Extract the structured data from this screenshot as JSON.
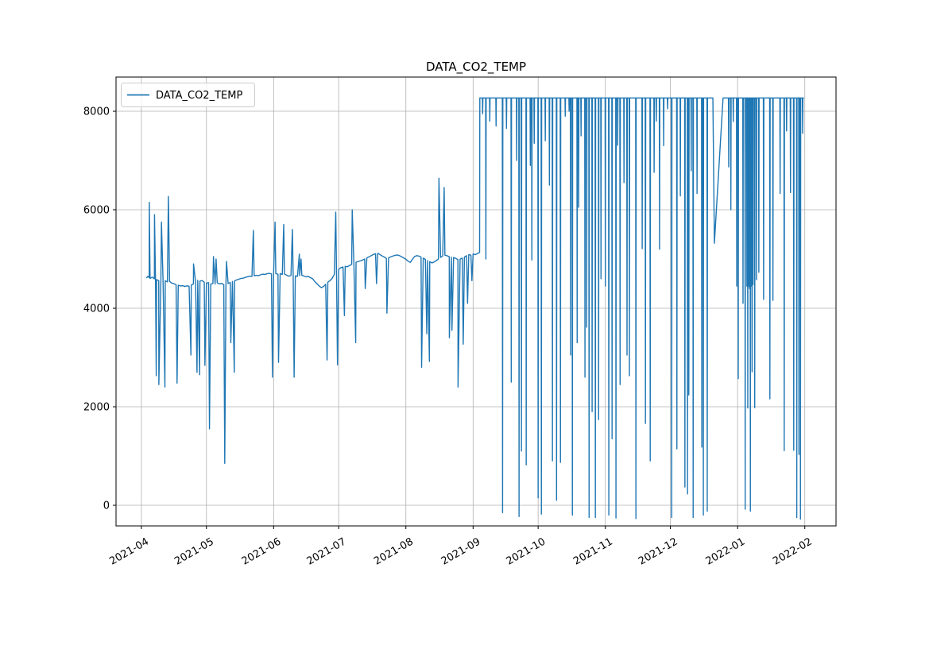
{
  "title": "DATA_CO2_TEMP",
  "legend": {
    "label": "DATA_CO2_TEMP",
    "line_color": "#1f77b4"
  },
  "chart_data": {
    "type": "line",
    "title": "DATA_CO2_TEMP",
    "series_name": "DATA_CO2_TEMP",
    "line_color": "#1f77b4",
    "grid": true,
    "grid_color": "#b0b0b0",
    "axis_color": "#000000",
    "legend_position": "upper left",
    "x_unit": "days since 2021-04-01",
    "xlim": [
      -11.7,
      320.4
    ],
    "ylim": [
      -419,
      8694
    ],
    "x_ticks": [
      {
        "day": 0,
        "label": "2021-04"
      },
      {
        "day": 30,
        "label": "2021-05"
      },
      {
        "day": 61,
        "label": "2021-06"
      },
      {
        "day": 91,
        "label": "2021-07"
      },
      {
        "day": 122,
        "label": "2021-08"
      },
      {
        "day": 153,
        "label": "2021-09"
      },
      {
        "day": 183,
        "label": "2021-10"
      },
      {
        "day": 214,
        "label": "2021-11"
      },
      {
        "day": 244,
        "label": "2021-12"
      },
      {
        "day": 275,
        "label": "2022-01"
      },
      {
        "day": 306,
        "label": "2022-02"
      }
    ],
    "y_ticks": [
      {
        "value": 0,
        "label": "0"
      },
      {
        "value": 2000,
        "label": "2000"
      },
      {
        "value": 4000,
        "label": "4000"
      },
      {
        "value": 6000,
        "label": "6000"
      },
      {
        "value": 8000,
        "label": "8000"
      }
    ],
    "baseline_points": [
      [
        2.3,
        4615
      ],
      [
        3,
        4648
      ],
      [
        3.6,
        4622
      ],
      [
        3.65,
        6150
      ],
      [
        4,
        4605
      ],
      [
        5,
        4632
      ],
      [
        6,
        4598
      ],
      [
        6.05,
        5900
      ],
      [
        6.5,
        4612
      ],
      [
        6.85,
        2630
      ],
      [
        7,
        4582
      ],
      [
        8,
        4560
      ],
      [
        8.05,
        2450
      ],
      [
        9,
        4571
      ],
      [
        9.25,
        5750
      ],
      [
        10,
        4548
      ],
      [
        10.85,
        2400
      ],
      [
        11,
        4558
      ],
      [
        12,
        4535
      ],
      [
        12.45,
        6270
      ],
      [
        13,
        4546
      ],
      [
        14,
        4512
      ],
      [
        15,
        4498
      ],
      [
        16,
        4478
      ],
      [
        16.45,
        2480
      ],
      [
        17,
        4469
      ],
      [
        18,
        4452
      ],
      [
        19,
        4460
      ],
      [
        20,
        4443
      ],
      [
        21,
        4455
      ],
      [
        22,
        4447
      ],
      [
        22.85,
        3050
      ],
      [
        23,
        4468
      ],
      [
        24,
        4495
      ],
      [
        24.05,
        4900
      ],
      [
        25,
        4538
      ],
      [
        25.65,
        2700
      ],
      [
        26,
        4568
      ],
      [
        26.85,
        2650
      ],
      [
        27,
        4551
      ],
      [
        28,
        4562
      ],
      [
        29,
        4528
      ],
      [
        29.3,
        2840
      ],
      [
        30,
        4512
      ],
      [
        31,
        4520
      ],
      [
        31.4,
        1550
      ],
      [
        32,
        4489
      ],
      [
        33,
        4505
      ],
      [
        33.25,
        5050
      ],
      [
        34,
        4492
      ],
      [
        34.45,
        5000
      ],
      [
        35,
        4517
      ],
      [
        36,
        4494
      ],
      [
        37,
        4506
      ],
      [
        38,
        4478
      ],
      [
        38.45,
        850
      ],
      [
        39,
        4488
      ],
      [
        39.25,
        4950
      ],
      [
        40,
        4502
      ],
      [
        41,
        4522
      ],
      [
        41.25,
        3300
      ],
      [
        42,
        4543
      ],
      [
        42.85,
        2700
      ],
      [
        43,
        4556
      ],
      [
        44,
        4577
      ],
      [
        45,
        4591
      ],
      [
        46,
        4606
      ],
      [
        47,
        4611
      ],
      [
        48,
        4628
      ],
      [
        49,
        4641
      ],
      [
        50,
        4653
      ],
      [
        51,
        4647
      ],
      [
        51.65,
        5580
      ],
      [
        52,
        4659
      ],
      [
        53,
        4668
      ],
      [
        54,
        4661
      ],
      [
        55,
        4680
      ],
      [
        56,
        4692
      ],
      [
        57,
        4687
      ],
      [
        58,
        4701
      ],
      [
        59,
        4709
      ],
      [
        60,
        4698
      ],
      [
        60.45,
        2600
      ],
      [
        61,
        4713
      ],
      [
        61.65,
        5750
      ],
      [
        62,
        4702
      ],
      [
        63,
        4691
      ],
      [
        63.25,
        2900
      ],
      [
        64,
        4704
      ],
      [
        65,
        4687
      ],
      [
        65.65,
        5700
      ],
      [
        66,
        4695
      ],
      [
        67,
        4672
      ],
      [
        68,
        4651
      ],
      [
        69,
        4666
      ],
      [
        69.65,
        5600
      ],
      [
        70,
        4678
      ],
      [
        70.45,
        2600
      ],
      [
        71,
        4656
      ],
      [
        72,
        4648
      ],
      [
        72.85,
        5100
      ],
      [
        73,
        4663
      ],
      [
        73.65,
        5000
      ],
      [
        74,
        4671
      ],
      [
        75,
        4654
      ],
      [
        76,
        4637
      ],
      [
        77,
        4648
      ],
      [
        78,
        4622
      ],
      [
        79,
        4598
      ],
      [
        80,
        4541
      ],
      [
        81,
        4498
      ],
      [
        82,
        4452
      ],
      [
        83,
        4418
      ],
      [
        84,
        4441
      ],
      [
        85,
        4487
      ],
      [
        85.65,
        2950
      ],
      [
        86,
        4529
      ],
      [
        87,
        4561
      ],
      [
        88,
        4609
      ],
      [
        89,
        4689
      ],
      [
        89.65,
        5950
      ],
      [
        90,
        4741
      ],
      [
        90.45,
        2850
      ],
      [
        91,
        4789
      ],
      [
        92,
        4824
      ],
      [
        93,
        4838
      ],
      [
        93.65,
        3850
      ],
      [
        94,
        4851
      ],
      [
        95,
        4843
      ],
      [
        96,
        4867
      ],
      [
        97,
        4892
      ],
      [
        97.25,
        6000
      ],
      [
        98,
        4921
      ],
      [
        98.85,
        3300
      ],
      [
        99,
        4936
      ],
      [
        100,
        4948
      ],
      [
        101,
        4962
      ],
      [
        102,
        4979
      ],
      [
        103,
        5001
      ],
      [
        103.25,
        4400
      ],
      [
        104,
        5022
      ],
      [
        105,
        5044
      ],
      [
        106,
        5068
      ],
      [
        107,
        5091
      ],
      [
        108,
        5108
      ],
      [
        108.45,
        4500
      ],
      [
        109,
        5116
      ],
      [
        110,
        5092
      ],
      [
        111,
        5063
      ],
      [
        112,
        5041
      ],
      [
        113,
        5012
      ],
      [
        113.25,
        3900
      ],
      [
        114,
        5024
      ],
      [
        115,
        5043
      ],
      [
        116,
        5061
      ],
      [
        117,
        5074
      ],
      [
        118,
        5082
      ],
      [
        119,
        5069
      ],
      [
        120,
        5047
      ],
      [
        121,
        5021
      ],
      [
        122,
        4996
      ],
      [
        123,
        4957
      ],
      [
        124,
        4931
      ],
      [
        125,
        4992
      ],
      [
        126,
        5051
      ],
      [
        127,
        5068
      ],
      [
        128,
        5059
      ],
      [
        129,
        5041
      ],
      [
        129.25,
        2800
      ],
      [
        130,
        5018
      ],
      [
        131,
        4992
      ],
      [
        131.65,
        3480
      ],
      [
        132,
        4968
      ],
      [
        132.85,
        2920
      ],
      [
        133,
        4947
      ],
      [
        134,
        4921
      ],
      [
        135,
        4939
      ],
      [
        136,
        4968
      ],
      [
        137,
        5002
      ],
      [
        137.25,
        6640
      ],
      [
        138,
        5031
      ],
      [
        139,
        5064
      ],
      [
        139.65,
        6450
      ],
      [
        140,
        5078
      ],
      [
        141,
        5066
      ],
      [
        142,
        5049
      ],
      [
        142.05,
        3400
      ],
      [
        143,
        5037
      ],
      [
        143.25,
        3550
      ],
      [
        144,
        5031
      ],
      [
        145,
        5012
      ],
      [
        146,
        4988
      ],
      [
        146.05,
        2400
      ],
      [
        147,
        4999
      ],
      [
        148,
        5018
      ],
      [
        148.45,
        3270
      ],
      [
        149,
        5041
      ],
      [
        150,
        5068
      ],
      [
        150.45,
        4100
      ],
      [
        151,
        5089
      ],
      [
        152,
        5079
      ],
      [
        152.45,
        4560
      ],
      [
        153,
        5102
      ],
      [
        154,
        5088
      ],
      [
        155,
        5112
      ],
      [
        155.6,
        5124
      ],
      [
        156,
        5131
      ]
    ],
    "saturation": {
      "level": 8270,
      "start_day": 156.1,
      "end_day": 305.6,
      "dips": [
        [
          157.4,
          7950
        ],
        [
          158.9,
          5000
        ],
        [
          160.7,
          7800
        ],
        [
          163.6,
          7700
        ],
        [
          166.6,
          -150
        ],
        [
          168.4,
          7650
        ],
        [
          170.6,
          2500
        ],
        [
          173.1,
          7000
        ],
        [
          174.2,
          -230
        ],
        [
          175.3,
          1100
        ],
        [
          177.5,
          820
        ],
        [
          179.4,
          6900
        ],
        [
          180.1,
          4980
        ],
        [
          181.2,
          7350
        ],
        [
          183.0,
          150
        ],
        [
          184.5,
          -180
        ],
        [
          186.3,
          7400
        ],
        [
          188.2,
          6500
        ],
        [
          189.6,
          900
        ],
        [
          191.5,
          100
        ],
        [
          193.3,
          870
        ],
        [
          195.5,
          7900
        ],
        [
          197.3,
          8000
        ],
        [
          198.0,
          3050
        ],
        [
          198.8,
          -200
        ],
        [
          201.0,
          3300
        ],
        [
          201.7,
          6050
        ],
        [
          202.8,
          7500
        ],
        [
          204.6,
          2600
        ],
        [
          205.4,
          3615
        ],
        [
          206.5,
          -250
        ],
        [
          207.9,
          1900
        ],
        [
          209.4,
          -250
        ],
        [
          210.9,
          1740
        ],
        [
          212.0,
          4600
        ],
        [
          214.0,
          4450
        ],
        [
          215.6,
          -200
        ],
        [
          217.1,
          1350
        ],
        [
          218.9,
          -260
        ],
        [
          219.7,
          7310
        ],
        [
          220.8,
          2450
        ],
        [
          222.6,
          6550
        ],
        [
          224.0,
          3050
        ],
        [
          225.1,
          2630
        ],
        [
          228.1,
          -270
        ],
        [
          231.0,
          5210
        ],
        [
          232.5,
          1660
        ],
        [
          234.7,
          900
        ],
        [
          236.5,
          6760
        ],
        [
          237.5,
          7800
        ],
        [
          239.0,
          5200
        ],
        [
          240.9,
          7300
        ],
        [
          242.7,
          8050
        ],
        [
          244.6,
          -250
        ],
        [
          247.0,
          1145
        ],
        [
          248.6,
          6280
        ],
        [
          250.7,
          370
        ],
        [
          251.9,
          230
        ],
        [
          252.5,
          2240
        ],
        [
          253.6,
          6790
        ],
        [
          254.5,
          -250
        ],
        [
          256.3,
          6330
        ],
        [
          258.5,
          1180
        ],
        [
          259.2,
          -200
        ],
        [
          261.0,
          -120
        ],
        [
          264.3,
          5320,
          268.3,
          263.6
        ],
        [
          270.9,
          6870
        ],
        [
          271.9,
          6000
        ],
        [
          273.0,
          7790
        ],
        [
          274.6,
          4450
        ],
        [
          275.3,
          2570
        ],
        [
          277.5,
          4100
        ],
        [
          278.5,
          -80
        ],
        [
          279.3,
          4450
        ],
        [
          279.7,
          1975
        ],
        [
          280.1,
          4450
        ],
        [
          280.5,
          4400
        ],
        [
          280.9,
          -120
        ],
        [
          281.3,
          4450
        ],
        [
          281.7,
          2710
        ],
        [
          282.1,
          4480
        ],
        [
          282.9,
          1980
        ],
        [
          283.7,
          4580
        ],
        [
          284.8,
          4730
        ],
        [
          287.0,
          4180
        ],
        [
          289.9,
          2160
        ],
        [
          291.3,
          4160
        ],
        [
          294.6,
          6330
        ],
        [
          296.5,
          1110
        ],
        [
          297.6,
          7600
        ],
        [
          299.4,
          6350
        ],
        [
          300.9,
          1115
        ],
        [
          302.3,
          -250
        ],
        [
          303.3,
          1030
        ],
        [
          304.0,
          -280
        ],
        [
          305.0,
          7550
        ]
      ]
    }
  }
}
